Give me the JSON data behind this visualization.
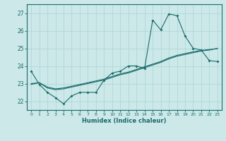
{
  "xlabel": "Humidex (Indice chaleur)",
  "bg_color": "#cce8e8",
  "line_color": "#1a6b6b",
  "grid_color": "#aad4d4",
  "xlim": [
    -0.5,
    23.5
  ],
  "ylim": [
    21.5,
    27.5
  ],
  "xticks": [
    0,
    1,
    2,
    3,
    4,
    5,
    6,
    7,
    8,
    9,
    10,
    11,
    12,
    13,
    14,
    15,
    16,
    17,
    18,
    19,
    20,
    21,
    22,
    23
  ],
  "yticks": [
    22,
    23,
    24,
    25,
    26,
    27
  ],
  "line1_x": [
    0,
    1,
    2,
    3,
    4,
    5,
    6,
    7,
    8,
    9,
    10,
    11,
    12,
    13,
    14,
    15,
    16,
    17,
    18,
    19,
    20,
    21,
    22,
    23
  ],
  "line1_y": [
    23.7,
    22.95,
    22.5,
    22.2,
    21.85,
    22.3,
    22.5,
    22.5,
    22.5,
    23.2,
    23.6,
    23.7,
    24.0,
    24.0,
    23.85,
    26.6,
    26.05,
    26.95,
    26.85,
    25.7,
    25.0,
    24.9,
    24.3,
    24.25
  ],
  "line2_x": [
    0,
    1,
    2,
    3,
    4,
    5,
    6,
    7,
    8,
    9,
    10,
    11,
    12,
    13,
    14,
    15,
    16,
    17,
    18,
    19,
    20,
    21,
    22,
    23
  ],
  "line2_y": [
    23.0,
    23.05,
    22.75,
    22.65,
    22.7,
    22.8,
    22.9,
    23.0,
    23.1,
    23.2,
    23.35,
    23.5,
    23.6,
    23.75,
    23.9,
    24.05,
    24.2,
    24.4,
    24.55,
    24.65,
    24.75,
    24.85,
    24.9,
    25.0
  ],
  "line3_x": [
    0,
    1,
    2,
    3,
    4,
    5,
    6,
    7,
    8,
    9,
    10,
    11,
    12,
    13,
    14,
    15,
    16,
    17,
    18,
    19,
    20,
    21,
    22,
    23
  ],
  "line3_y": [
    22.95,
    23.05,
    22.8,
    22.7,
    22.75,
    22.85,
    22.95,
    23.05,
    23.15,
    23.25,
    23.4,
    23.55,
    23.65,
    23.8,
    23.95,
    24.1,
    24.25,
    24.45,
    24.6,
    24.7,
    24.8,
    24.88,
    24.93,
    24.98
  ]
}
